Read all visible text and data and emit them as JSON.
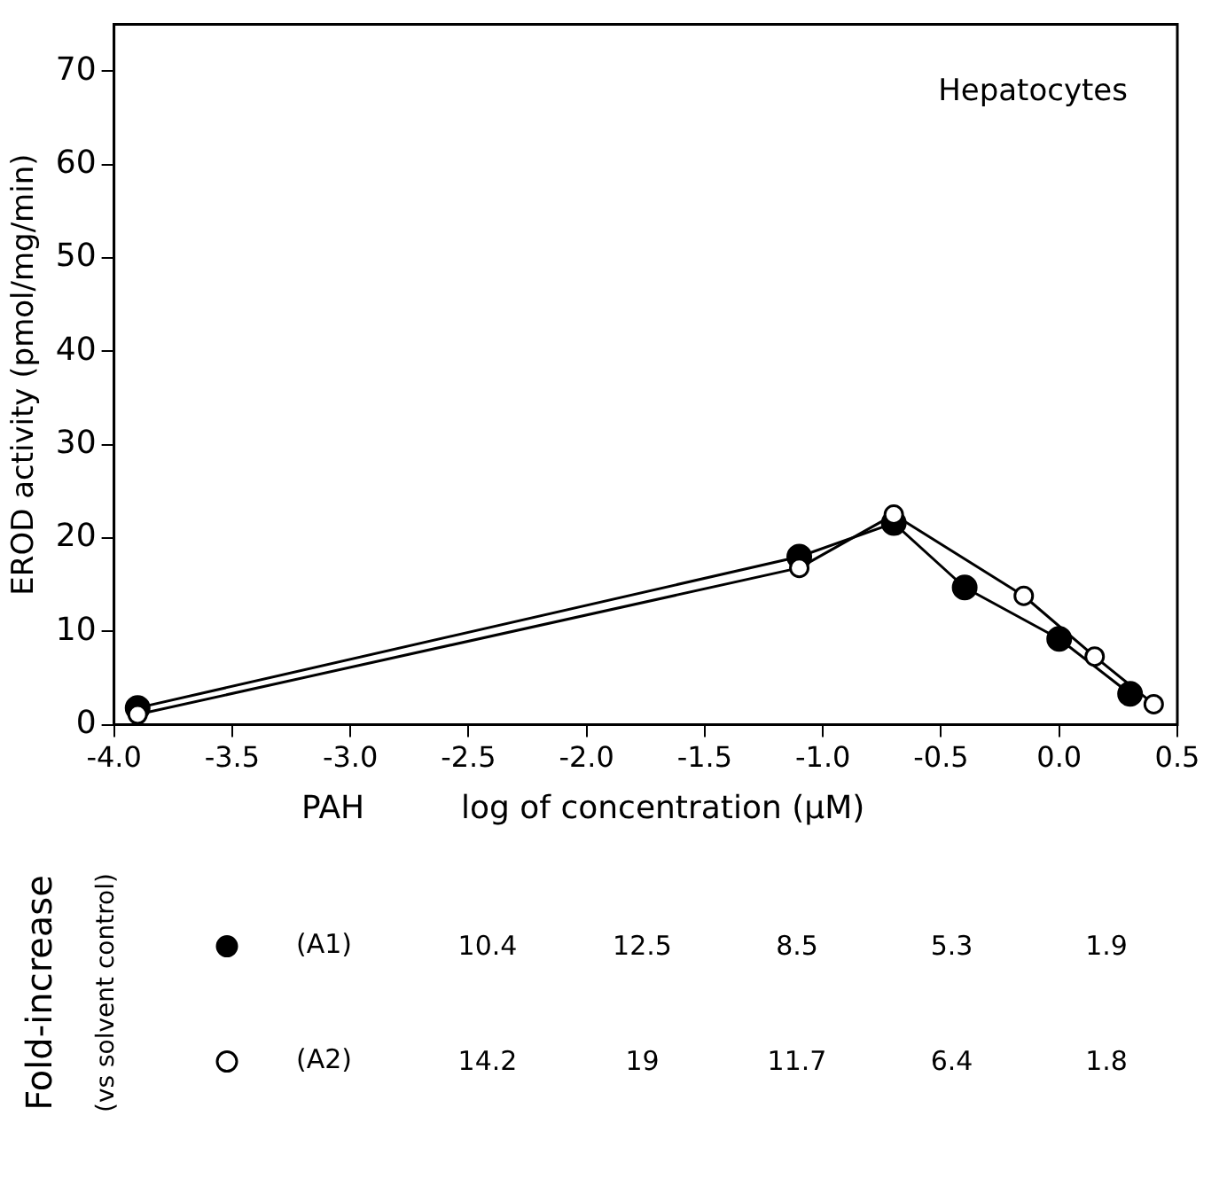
{
  "chart_data": [
    {
      "type": "line",
      "title": "Hepatocytes",
      "xlabel": "log of concentration (µM)",
      "ylabel": "EROD activity (pmol/mg/min)",
      "xlim": [
        -4.0,
        0.5
      ],
      "xticks": [
        {
          "value": -4.0,
          "label": "-4.0"
        },
        -3.5,
        {
          "value": -3.0,
          "label": "-3.0"
        },
        -2.5,
        {
          "value": -2.0,
          "label": "-2.0"
        },
        -1.5,
        {
          "value": -1.0,
          "label": "-1.0"
        },
        -0.5,
        {
          "value": 0.0,
          "label": "0.0"
        },
        0.5
      ],
      "ylim": [
        0,
        75
      ],
      "yticks": [
        0,
        10,
        20,
        30,
        40,
        50,
        60,
        70
      ],
      "grid": false,
      "legend": "bottom",
      "marker": "circle",
      "line_style": "solid",
      "annotations": [
        "PAH"
      ],
      "series": [
        {
          "name": "(A1)",
          "color": "#000000",
          "x": [
            -3.9,
            -1.1,
            -0.7,
            -0.4,
            0.0,
            0.3
          ],
          "values": [
            1.8,
            18.0,
            21.6,
            14.7,
            9.2,
            3.3
          ]
        },
        {
          "name": "(A2)",
          "color": "#000000",
          "x": [
            -3.9,
            -1.1,
            -0.7,
            -0.15,
            0.15,
            0.4
          ],
          "values": [
            1.1,
            16.8,
            22.5,
            13.8,
            7.3,
            2.2
          ]
        }
      ]
    },
    {
      "type": "other",
      "title": "Fold-increase",
      "subtitle": "(vs solvent control)",
      "annotations": [
        "10.4",
        "12.5",
        "8.5",
        "5.3",
        "1.9",
        "14.2",
        "19",
        "11.7",
        "6.4",
        "1.8"
      ]
    }
  ]
}
